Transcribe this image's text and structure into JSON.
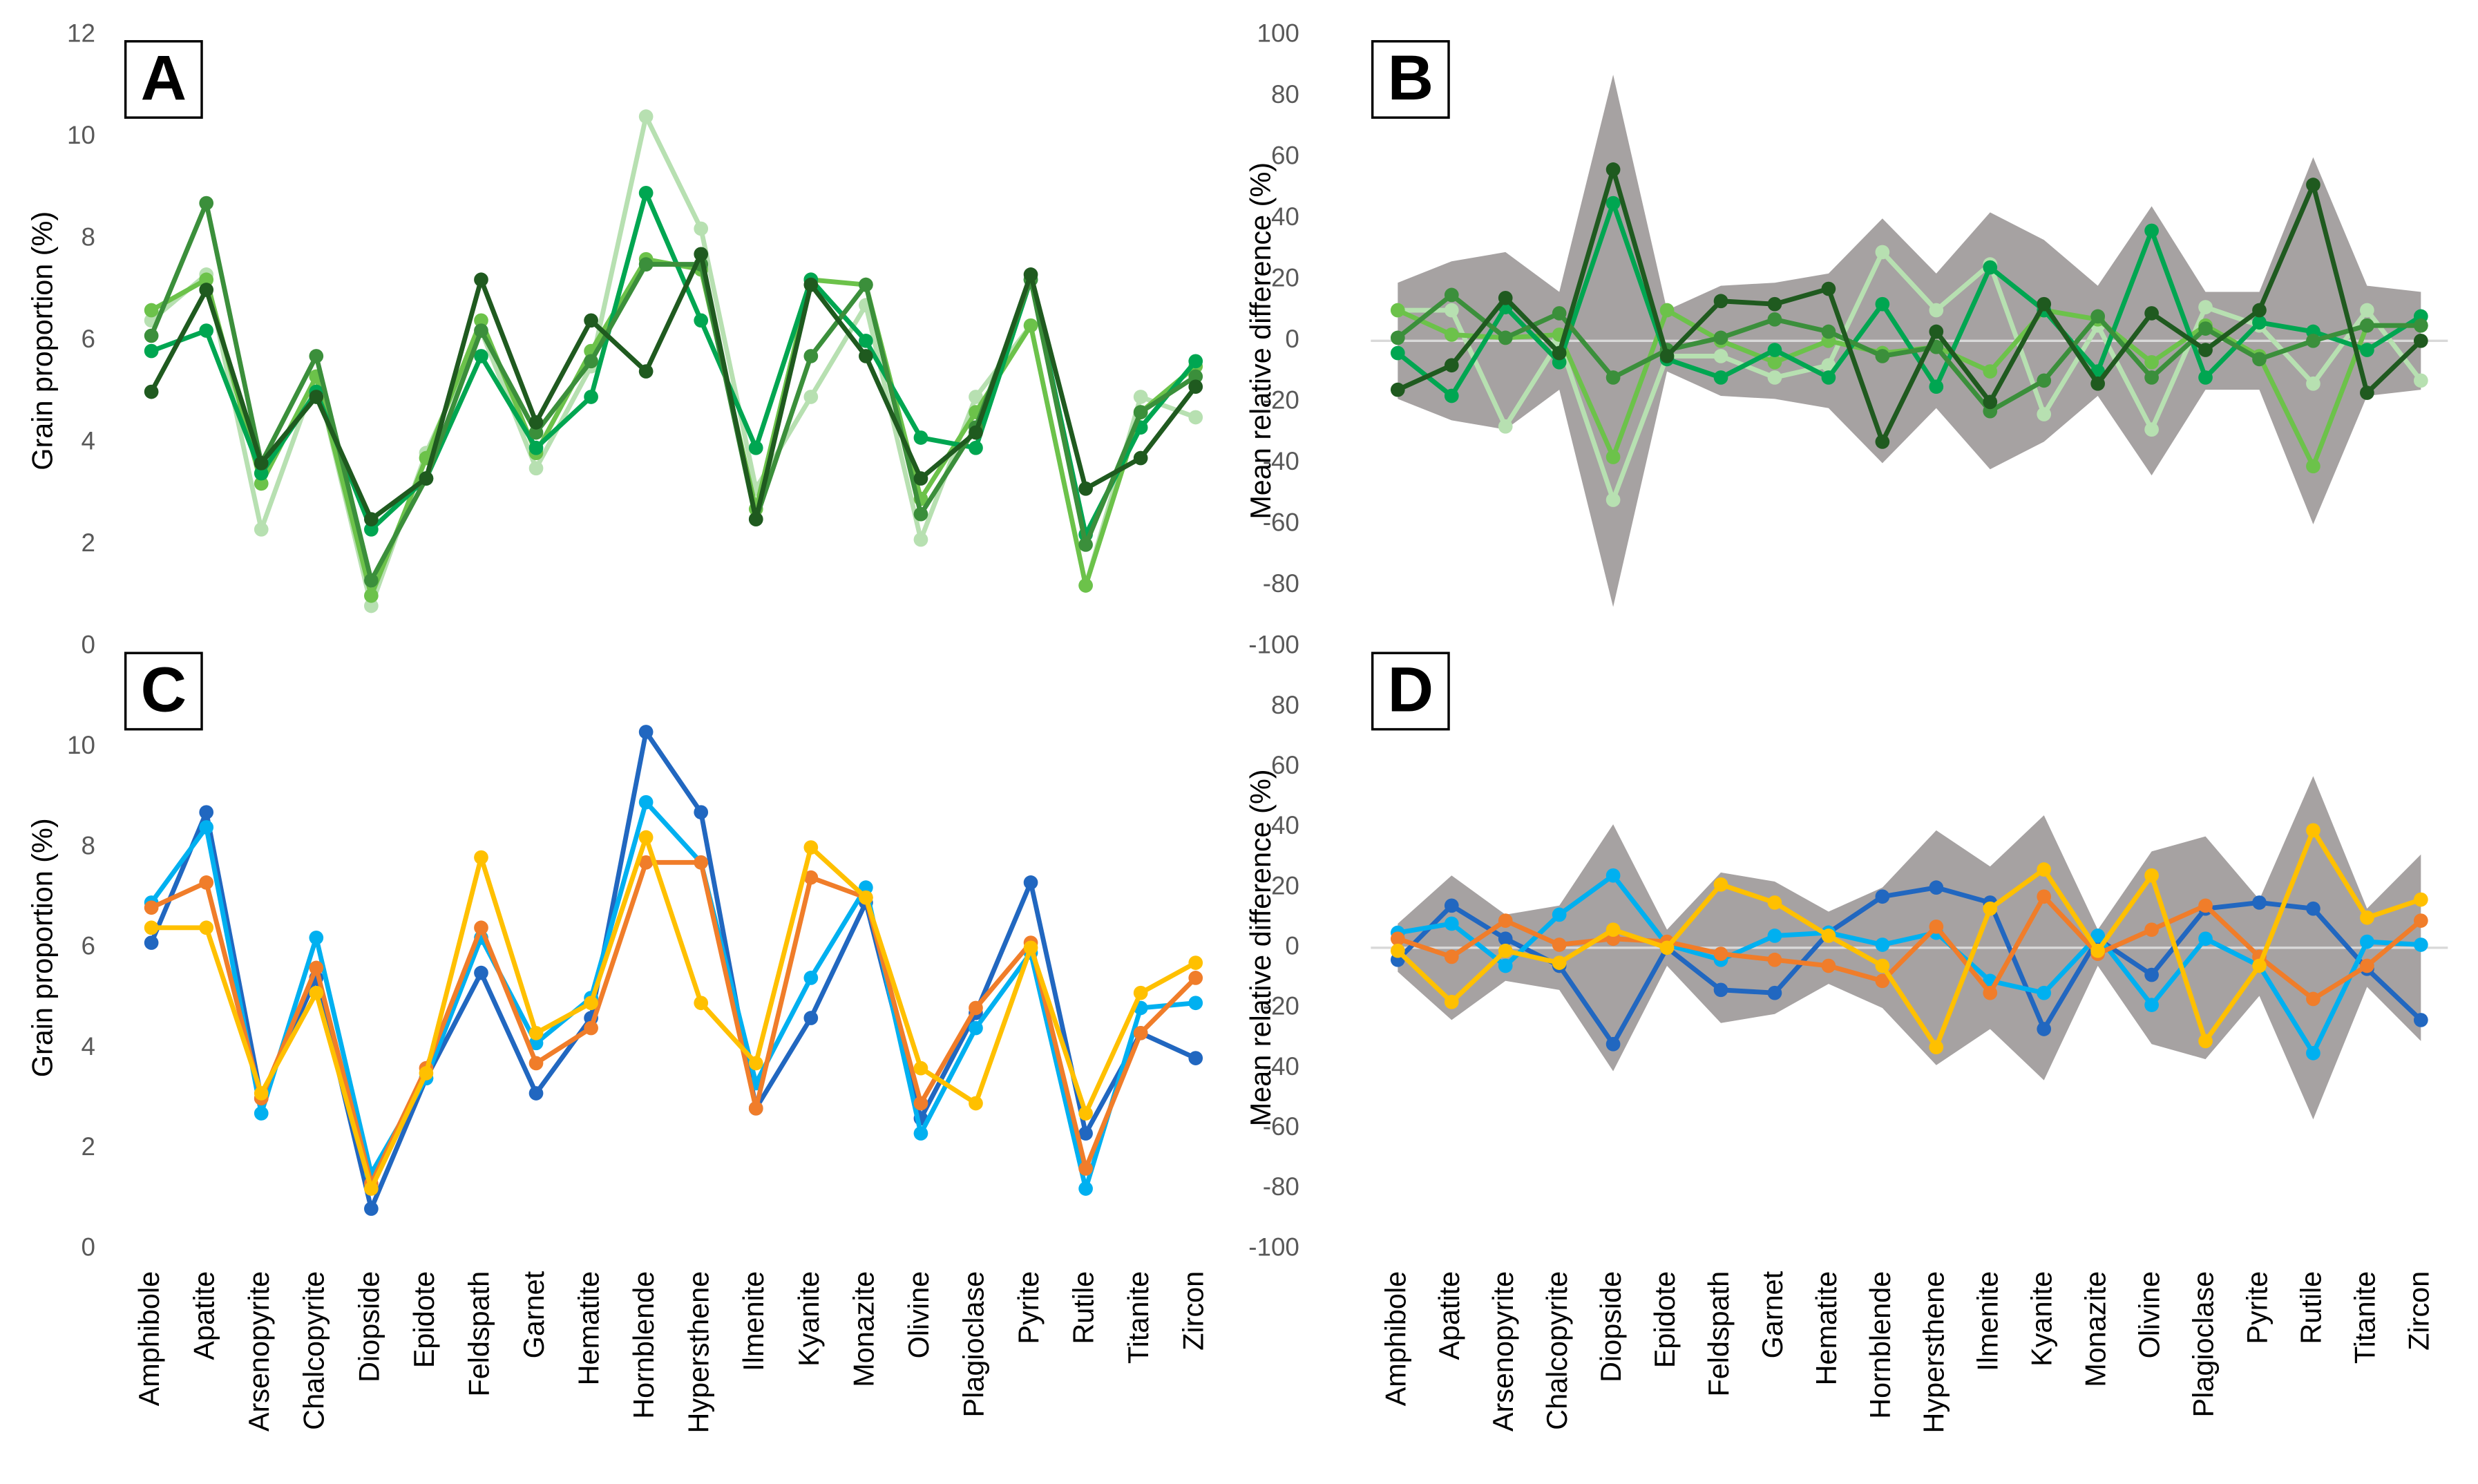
{
  "chart_data": [
    {
      "type": "line",
      "panel": "A",
      "ylabel": "Grain proportion  (%)",
      "ylim": [
        0,
        12
      ],
      "yticks": [
        0,
        2,
        4,
        6,
        8,
        10,
        12
      ],
      "series": [
        {
          "color": "#b7e0b1",
          "values": [
            6.4,
            7.3,
            2.3,
            5.3,
            0.8,
            3.8,
            6.2,
            3.5,
            5.5,
            10.4,
            8.2,
            3.1,
            4.9,
            6.7,
            2.1,
            4.9,
            6.3,
            1.2,
            4.9,
            4.5
          ]
        },
        {
          "color": "#6cc24a",
          "values": [
            6.6,
            7.2,
            3.2,
            5.3,
            1.0,
            3.7,
            6.4,
            3.8,
            5.8,
            7.6,
            7.4,
            2.7,
            7.2,
            7.1,
            2.9,
            4.6,
            6.3,
            1.2,
            4.6,
            5.5
          ]
        },
        {
          "color": "#00a651",
          "values": [
            5.8,
            6.2,
            3.4,
            5.0,
            2.3,
            3.3,
            5.7,
            3.9,
            4.9,
            8.9,
            6.4,
            3.9,
            7.2,
            6.0,
            4.1,
            3.9,
            7.2,
            2.2,
            4.3,
            5.6
          ]
        },
        {
          "color": "#3b8f3b",
          "values": [
            6.1,
            8.7,
            3.6,
            5.7,
            1.3,
            3.3,
            6.2,
            4.2,
            5.6,
            7.5,
            7.5,
            2.5,
            5.7,
            7.1,
            2.6,
            4.3,
            7.2,
            2.0,
            4.6,
            5.3
          ]
        },
        {
          "color": "#1f5a1f",
          "values": [
            5.0,
            7.0,
            3.6,
            4.9,
            2.5,
            3.3,
            7.2,
            4.4,
            6.4,
            5.4,
            7.7,
            2.5,
            7.1,
            5.7,
            3.3,
            4.2,
            7.3,
            3.1,
            3.7,
            5.1
          ]
        }
      ]
    },
    {
      "type": "line",
      "panel": "B",
      "ylabel": "Mean relative difference (%)",
      "ylim": [
        -100,
        100
      ],
      "yticks": [
        -100,
        -80,
        -60,
        -40,
        -20,
        0,
        20,
        40,
        60,
        80,
        100
      ],
      "zero_line": true,
      "band": {
        "color": "#a6a2a2",
        "upper": [
          19,
          26,
          29,
          16,
          87,
          10,
          18,
          19,
          22,
          40,
          22,
          42,
          33,
          18,
          44,
          16,
          16,
          60,
          18,
          16
        ],
        "lower": [
          -19,
          -26,
          -29,
          -16,
          -87,
          -10,
          -18,
          -19,
          -22,
          -40,
          -22,
          -42,
          -33,
          -18,
          -44,
          -16,
          -16,
          -60,
          -18,
          -16
        ]
      },
      "series": [
        {
          "color": "#b7e0b1",
          "values": [
            10,
            10,
            -28,
            0,
            -52,
            -5,
            -5,
            -12,
            -8,
            29,
            10,
            25,
            -24,
            5,
            -29,
            11,
            5,
            -14,
            10,
            -13
          ]
        },
        {
          "color": "#6cc24a",
          "values": [
            10,
            2,
            1,
            2,
            -38,
            10,
            0,
            -7,
            0,
            -4,
            -2,
            -10,
            10,
            7,
            -7,
            5,
            -5,
            -41,
            5,
            5
          ]
        },
        {
          "color": "#00a651",
          "values": [
            -4,
            -18,
            11,
            -7,
            45,
            -6,
            -12,
            -3,
            -12,
            12,
            -15,
            24,
            10,
            -10,
            36,
            -12,
            6,
            3,
            -3,
            8
          ]
        },
        {
          "color": "#3b8f3b",
          "values": [
            1,
            15,
            1,
            9,
            -12,
            -3,
            1,
            7,
            3,
            -5,
            -2,
            -23,
            -13,
            8,
            -12,
            4,
            -6,
            0,
            5,
            5
          ]
        },
        {
          "color": "#1f5a1f",
          "values": [
            -16,
            -8,
            14,
            -4,
            56,
            -5,
            13,
            12,
            17,
            -33,
            3,
            -20,
            12,
            -14,
            9,
            -3,
            10,
            51,
            -17,
            0
          ]
        }
      ]
    },
    {
      "type": "line",
      "panel": "C",
      "ylabel": "Grain proportion  (%)",
      "ylim": [
        0,
        12
      ],
      "yticks": [
        0,
        2,
        4,
        6,
        8,
        10
      ],
      "categories": [
        "Amphibole",
        "Apatite",
        "Arsenopyrite",
        "Chalcopyrite",
        "Diopside",
        "Epidote",
        "Feldspath",
        "Garnet",
        "Hematite",
        "Hornblende",
        "Hypersthene",
        "Ilmenite",
        "Kyanite",
        "Monazite",
        "Olivine",
        "Plagioclase",
        "Pyrite",
        "Rutile",
        "Titanite",
        "Zircon"
      ],
      "series": [
        {
          "color": "#2167c0",
          "values": [
            6.1,
            8.7,
            3.0,
            5.4,
            0.8,
            3.4,
            5.5,
            3.1,
            4.6,
            10.3,
            8.7,
            2.8,
            4.6,
            6.9,
            2.6,
            4.7,
            7.3,
            2.3,
            4.3,
            3.8
          ]
        },
        {
          "color": "#00b0f0",
          "values": [
            6.9,
            8.4,
            2.7,
            6.2,
            1.5,
            3.4,
            6.2,
            4.1,
            5.0,
            8.9,
            7.7,
            3.3,
            5.4,
            7.2,
            2.3,
            4.4,
            5.9,
            1.2,
            4.8,
            4.9
          ]
        },
        {
          "color": "#f07d2a",
          "values": [
            6.8,
            7.3,
            3.0,
            5.6,
            1.3,
            3.6,
            6.4,
            3.7,
            4.4,
            7.7,
            7.7,
            2.8,
            7.4,
            7.0,
            2.9,
            4.8,
            6.1,
            1.6,
            4.3,
            5.4
          ]
        },
        {
          "color": "#ffc000",
          "values": [
            6.4,
            6.4,
            3.1,
            5.1,
            1.2,
            3.5,
            7.8,
            4.3,
            4.9,
            8.2,
            4.9,
            3.7,
            8.0,
            7.0,
            3.6,
            2.9,
            6.0,
            2.7,
            5.1,
            5.7
          ]
        }
      ]
    },
    {
      "type": "line",
      "panel": "D",
      "ylabel": "Mean relative difference (%)",
      "ylim": [
        -100,
        100
      ],
      "yticks": [
        -100,
        -80,
        -60,
        -40,
        -20,
        0,
        20,
        40,
        60,
        80
      ],
      "zero_line": true,
      "categories": [
        "Amphibole",
        "Apatite",
        "Arsenopyrite",
        "Chalcopyrite",
        "Diopside",
        "Epidote",
        "Feldspath",
        "Garnet",
        "Hematite",
        "Hornblende",
        "Hypersthene",
        "Ilmenite",
        "Kyanite",
        "Monazite",
        "Olivine",
        "Plagioclase",
        "Pyrite",
        "Rutile",
        "Titanite",
        "Zircon"
      ],
      "band": {
        "color": "#a6a2a2",
        "upper": [
          8,
          24,
          11,
          14,
          41,
          6,
          25,
          22,
          12,
          20,
          39,
          27,
          44,
          6,
          32,
          37,
          16,
          57,
          13,
          31
        ],
        "lower": [
          -8,
          -24,
          -11,
          -14,
          -41,
          -6,
          -25,
          -22,
          -12,
          -20,
          -39,
          -27,
          -44,
          -6,
          -32,
          -37,
          -16,
          -57,
          -13,
          -31
        ]
      },
      "series": [
        {
          "color": "#2167c0",
          "values": [
            -4,
            14,
            3,
            -6,
            -32,
            0,
            -14,
            -15,
            5,
            17,
            20,
            15,
            -27,
            3,
            -9,
            13,
            15,
            13,
            -7,
            -24
          ]
        },
        {
          "color": "#00b0f0",
          "values": [
            5,
            8,
            -6,
            11,
            24,
            1,
            -4,
            4,
            5,
            1,
            5,
            -11,
            -15,
            4,
            -19,
            3,
            -6,
            -35,
            2,
            1
          ]
        },
        {
          "color": "#f07d2a",
          "values": [
            3,
            -3,
            9,
            1,
            3,
            2,
            -2,
            -4,
            -6,
            -11,
            7,
            -15,
            17,
            -2,
            6,
            14,
            -3,
            -17,
            -6,
            9
          ]
        },
        {
          "color": "#ffc000",
          "values": [
            -1,
            -18,
            -1,
            -5,
            6,
            0,
            21,
            15,
            4,
            -6,
            -33,
            13,
            26,
            -1,
            24,
            -31,
            -6,
            39,
            10,
            16
          ]
        }
      ]
    }
  ]
}
